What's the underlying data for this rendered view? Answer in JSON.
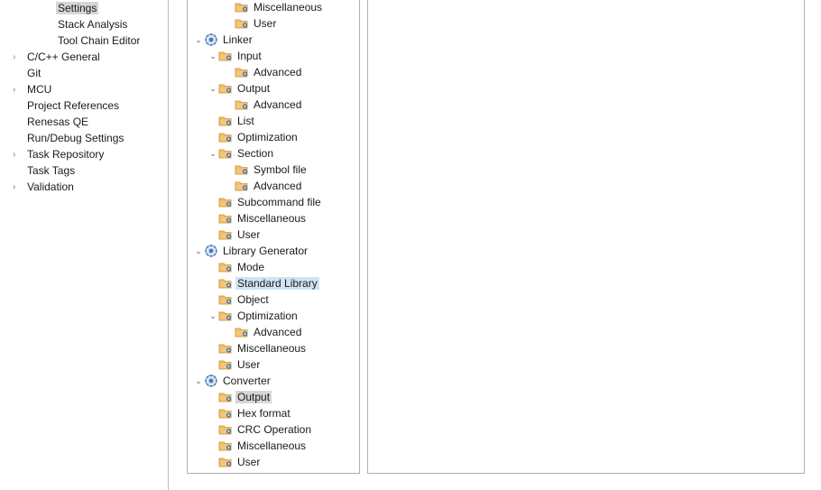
{
  "colors": {
    "border": "#b0b0b0",
    "nav_selected_bg": "#d6d6d6",
    "tree_selected_bg": "#d6d6d6",
    "tree_highlight_bg": "#cfe3f5",
    "arrow": "#808080"
  },
  "nav": {
    "items": [
      {
        "label": "Settings",
        "indent": 1,
        "expandable": false,
        "selected": true
      },
      {
        "label": "Stack Analysis",
        "indent": 1,
        "expandable": false,
        "selected": false
      },
      {
        "label": "Tool Chain Editor",
        "indent": 1,
        "expandable": false,
        "selected": false
      },
      {
        "label": "C/C++ General",
        "indent": 0,
        "expandable": true,
        "selected": false
      },
      {
        "label": "Git",
        "indent": 0,
        "expandable": false,
        "selected": false
      },
      {
        "label": "MCU",
        "indent": 0,
        "expandable": true,
        "selected": false
      },
      {
        "label": "Project References",
        "indent": 0,
        "expandable": false,
        "selected": false
      },
      {
        "label": "Renesas QE",
        "indent": 0,
        "expandable": false,
        "selected": false
      },
      {
        "label": "Run/Debug Settings",
        "indent": 0,
        "expandable": false,
        "selected": false
      },
      {
        "label": "Task Repository",
        "indent": 0,
        "expandable": true,
        "selected": false
      },
      {
        "label": "Task Tags",
        "indent": 0,
        "expandable": false,
        "selected": false
      },
      {
        "label": "Validation",
        "indent": 0,
        "expandable": true,
        "selected": false
      }
    ]
  },
  "tree": {
    "items": [
      {
        "label": "Miscellaneous",
        "indent": 2,
        "twisty": null,
        "icon": "folder",
        "state": null
      },
      {
        "label": "User",
        "indent": 2,
        "twisty": null,
        "icon": "folder",
        "state": null
      },
      {
        "label": "Linker",
        "indent": 0,
        "twisty": "open",
        "icon": "tool",
        "state": null
      },
      {
        "label": "Input",
        "indent": 1,
        "twisty": "open",
        "icon": "folder",
        "state": null
      },
      {
        "label": "Advanced",
        "indent": 2,
        "twisty": null,
        "icon": "folder",
        "state": null
      },
      {
        "label": "Output",
        "indent": 1,
        "twisty": "open",
        "icon": "folder",
        "state": null
      },
      {
        "label": "Advanced",
        "indent": 2,
        "twisty": null,
        "icon": "folder",
        "state": null
      },
      {
        "label": "List",
        "indent": 1,
        "twisty": null,
        "icon": "folder",
        "state": null
      },
      {
        "label": "Optimization",
        "indent": 1,
        "twisty": null,
        "icon": "folder",
        "state": null
      },
      {
        "label": "Section",
        "indent": 1,
        "twisty": "open",
        "icon": "folder",
        "state": null
      },
      {
        "label": "Symbol file",
        "indent": 2,
        "twisty": null,
        "icon": "folder",
        "state": null
      },
      {
        "label": "Advanced",
        "indent": 2,
        "twisty": null,
        "icon": "folder",
        "state": null
      },
      {
        "label": "Subcommand file",
        "indent": 1,
        "twisty": null,
        "icon": "folder",
        "state": null
      },
      {
        "label": "Miscellaneous",
        "indent": 1,
        "twisty": null,
        "icon": "folder",
        "state": null
      },
      {
        "label": "User",
        "indent": 1,
        "twisty": null,
        "icon": "folder",
        "state": null
      },
      {
        "label": "Library Generator",
        "indent": 0,
        "twisty": "open",
        "icon": "tool",
        "state": null
      },
      {
        "label": "Mode",
        "indent": 1,
        "twisty": null,
        "icon": "folder",
        "state": null
      },
      {
        "label": "Standard Library",
        "indent": 1,
        "twisty": null,
        "icon": "folder",
        "state": "highlight"
      },
      {
        "label": "Object",
        "indent": 1,
        "twisty": null,
        "icon": "folder",
        "state": null
      },
      {
        "label": "Optimization",
        "indent": 1,
        "twisty": "open",
        "icon": "folder",
        "state": null
      },
      {
        "label": "Advanced",
        "indent": 2,
        "twisty": null,
        "icon": "folder",
        "state": null
      },
      {
        "label": "Miscellaneous",
        "indent": 1,
        "twisty": null,
        "icon": "folder",
        "state": null
      },
      {
        "label": "User",
        "indent": 1,
        "twisty": null,
        "icon": "folder",
        "state": null
      },
      {
        "label": "Converter",
        "indent": 0,
        "twisty": "open",
        "icon": "tool",
        "state": null
      },
      {
        "label": "Output",
        "indent": 1,
        "twisty": null,
        "icon": "folder",
        "state": "selected"
      },
      {
        "label": "Hex format",
        "indent": 1,
        "twisty": null,
        "icon": "folder",
        "state": null
      },
      {
        "label": "CRC Operation",
        "indent": 1,
        "twisty": null,
        "icon": "folder",
        "state": null
      },
      {
        "label": "Miscellaneous",
        "indent": 1,
        "twisty": null,
        "icon": "folder",
        "state": null
      },
      {
        "label": "User",
        "indent": 1,
        "twisty": null,
        "icon": "folder",
        "state": null
      }
    ]
  }
}
